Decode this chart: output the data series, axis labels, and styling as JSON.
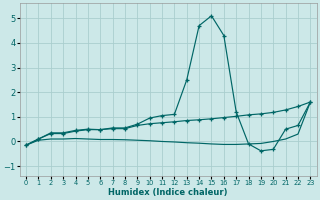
{
  "xlabel": "Humidex (Indice chaleur)",
  "background_color": "#cce8e8",
  "grid_color": "#aacece",
  "line_color": "#006666",
  "xlim": [
    -0.5,
    23.5
  ],
  "ylim": [
    -1.4,
    5.6
  ],
  "xticks": [
    0,
    1,
    2,
    3,
    4,
    5,
    6,
    7,
    8,
    9,
    10,
    11,
    12,
    13,
    14,
    15,
    16,
    17,
    18,
    19,
    20,
    21,
    22,
    23
  ],
  "yticks": [
    -1,
    0,
    1,
    2,
    3,
    4,
    5
  ],
  "spike_x": [
    0,
    1,
    2,
    3,
    4,
    5,
    6,
    7,
    8,
    9,
    10,
    11,
    12,
    13,
    14,
    15,
    16,
    17,
    18,
    19,
    20,
    21,
    22,
    23
  ],
  "spike_y": [
    -0.15,
    0.1,
    0.35,
    0.35,
    0.45,
    0.5,
    0.48,
    0.55,
    0.55,
    0.7,
    0.95,
    1.05,
    1.1,
    2.5,
    4.7,
    5.1,
    4.3,
    1.2,
    -0.1,
    -0.38,
    -0.32,
    0.5,
    0.65,
    1.6
  ],
  "mid_x": [
    0,
    1,
    2,
    3,
    4,
    5,
    6,
    7,
    8,
    9,
    10,
    11,
    12,
    13,
    14,
    15,
    16,
    17,
    18,
    19,
    20,
    21,
    22,
    23
  ],
  "mid_y": [
    -0.15,
    0.1,
    0.32,
    0.32,
    0.42,
    0.48,
    0.48,
    0.52,
    0.52,
    0.65,
    0.72,
    0.76,
    0.8,
    0.85,
    0.88,
    0.92,
    0.97,
    1.02,
    1.08,
    1.12,
    1.18,
    1.28,
    1.42,
    1.6
  ],
  "flat_x": [
    0,
    1,
    2,
    3,
    4,
    5,
    6,
    7,
    8,
    9,
    10,
    11,
    12,
    13,
    14,
    15,
    16,
    17,
    18,
    19,
    20,
    21,
    22,
    23
  ],
  "flat_y": [
    -0.15,
    0.05,
    0.1,
    0.1,
    0.12,
    0.1,
    0.08,
    0.08,
    0.07,
    0.05,
    0.03,
    0.0,
    -0.02,
    -0.05,
    -0.07,
    -0.1,
    -0.12,
    -0.12,
    -0.1,
    -0.08,
    0.0,
    0.1,
    0.3,
    1.6
  ]
}
